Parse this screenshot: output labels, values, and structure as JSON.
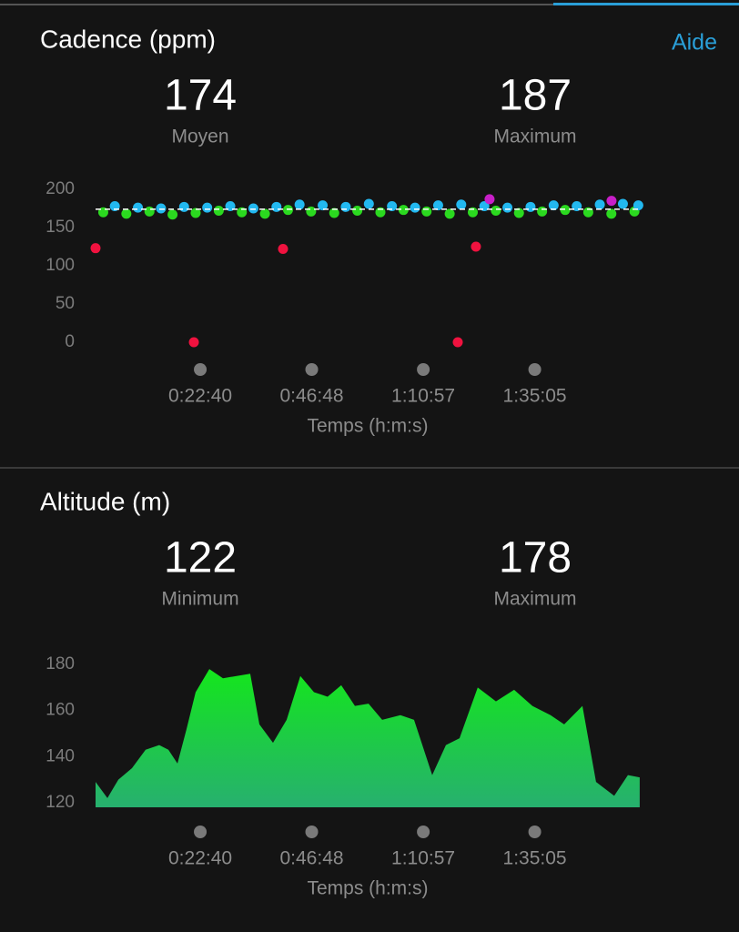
{
  "help_link": "Aide",
  "chart_data": [
    {
      "type": "scatter",
      "title": "Cadence (ppm)",
      "stats": [
        {
          "value": 174,
          "label": "Moyen"
        },
        {
          "value": 187,
          "label": "Maximum"
        }
      ],
      "x_label": "Temps (h:m:s)",
      "xlim": [
        0,
        7093
      ],
      "ylim": [
        0,
        200
      ],
      "yticks": [
        0,
        50,
        100,
        150,
        200
      ],
      "xticks": [
        {
          "value": 1360,
          "label": "0:22:40"
        },
        {
          "value": 2808,
          "label": "0:46:48"
        },
        {
          "value": 4257,
          "label": "1:10:57"
        },
        {
          "value": 5705,
          "label": "1:35:05"
        }
      ],
      "series": [
        {
          "color": "#2bd91f",
          "x": [
            100,
            400,
            700,
            1000,
            1300,
            1600,
            1900,
            2200,
            2500,
            2800,
            3100,
            3400,
            3700,
            4000,
            4300,
            4600,
            4900,
            5200,
            5500,
            5800,
            6100,
            6400,
            6700,
            7000
          ],
          "values": [
            170,
            168,
            171,
            167,
            169,
            172,
            170,
            168,
            173,
            171,
            169,
            172,
            170,
            173,
            171,
            168,
            170,
            172,
            169,
            171,
            173,
            170,
            168,
            171
          ]
        },
        {
          "color": "#22b8f0",
          "x": [
            250,
            550,
            850,
            1150,
            1450,
            1750,
            2050,
            2350,
            2650,
            2950,
            3250,
            3550,
            3850,
            4150,
            4450,
            4750,
            5050,
            5350,
            5650,
            5950,
            6250,
            6550,
            6850,
            7050
          ],
          "values": [
            178,
            176,
            175,
            177,
            176,
            178,
            175,
            177,
            180,
            179,
            177,
            181,
            178,
            176,
            179,
            180,
            178,
            176,
            177,
            179,
            178,
            180,
            181,
            179
          ]
        },
        {
          "color": "#f0123f",
          "x": [
            0,
            1277,
            2435,
            4705,
            4941
          ],
          "values": [
            123,
            0,
            122,
            0,
            125
          ]
        },
        {
          "color": "#c81fc8",
          "x": [
            5118,
            6702
          ],
          "values": [
            187,
            185
          ]
        }
      ]
    },
    {
      "type": "area",
      "title": "Altitude (m)",
      "stats": [
        {
          "value": 122,
          "label": "Minimum"
        },
        {
          "value": 178,
          "label": "Maximum"
        }
      ],
      "x_label": "Temps (h:m:s)",
      "xlim": [
        0,
        7093
      ],
      "ylim": [
        118,
        182
      ],
      "yticks": [
        120,
        140,
        160,
        180
      ],
      "xticks": [
        {
          "value": 1360,
          "label": "0:22:40"
        },
        {
          "value": 2808,
          "label": "0:46:48"
        },
        {
          "value": 4257,
          "label": "1:10:57"
        },
        {
          "value": 5705,
          "label": "1:35:05"
        }
      ],
      "color": "#14e61c",
      "x": [
        0,
        154,
        296,
        473,
        650,
        827,
        946,
        1064,
        1182,
        1300,
        1478,
        1655,
        1832,
        2009,
        2128,
        2305,
        2482,
        2660,
        2837,
        3014,
        3191,
        3369,
        3546,
        3723,
        3960,
        4137,
        4373,
        4551,
        4728,
        4964,
        5201,
        5437,
        5674,
        5910,
        6087,
        6324,
        6501,
        6737,
        6915,
        7068
      ],
      "values": [
        129,
        122,
        130,
        135,
        143,
        145,
        143,
        137,
        152,
        168,
        178,
        174,
        175,
        176,
        154,
        146,
        156,
        175,
        168,
        166,
        171,
        162,
        163,
        156,
        158,
        156,
        132,
        145,
        148,
        170,
        164,
        169,
        162,
        158,
        154,
        162,
        129,
        123,
        132,
        131
      ]
    }
  ]
}
